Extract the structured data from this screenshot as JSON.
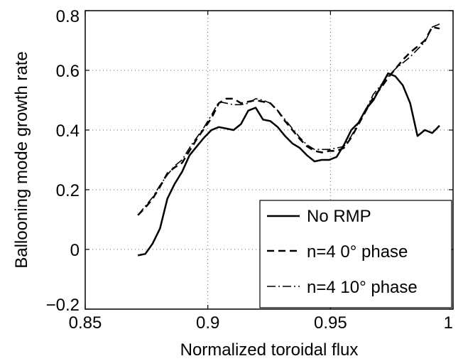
{
  "chart_data": {
    "type": "line",
    "title": "",
    "xlabel": "Normalized toroidal flux",
    "ylabel": "Ballooning mode growth rate",
    "xlim": [
      0.85,
      1.0
    ],
    "ylim": [
      -0.2,
      0.8
    ],
    "xticks": [
      0.85,
      0.9,
      0.95,
      1.0
    ],
    "xtick_labels": [
      "0.85",
      "0.9",
      "0.95",
      "1"
    ],
    "yticks": [
      -0.2,
      0.0,
      0.2,
      0.4,
      0.6,
      0.8
    ],
    "ytick_labels": [
      "−0.2",
      "0",
      "0.2",
      "0.4",
      "0.6",
      "0.8"
    ],
    "grid": true,
    "legend_position": "bottom-right",
    "series": [
      {
        "name": "No RMP",
        "line_style": "solid",
        "color": "#000000",
        "x": [
          0.8715,
          0.8745,
          0.8775,
          0.8805,
          0.8835,
          0.8865,
          0.8895,
          0.8925,
          0.8955,
          0.8985,
          0.9015,
          0.9045,
          0.9075,
          0.9105,
          0.9135,
          0.9165,
          0.9195,
          0.9225,
          0.9255,
          0.9285,
          0.9315,
          0.9345,
          0.9375,
          0.9405,
          0.9435,
          0.9465,
          0.9495,
          0.9525,
          0.9555,
          0.9585,
          0.9615,
          0.9645,
          0.9675,
          0.9705,
          0.9735,
          0.9765,
          0.9795,
          0.9825,
          0.9855,
          0.9885,
          0.9915,
          0.9945
        ],
        "y": [
          -0.02,
          -0.015,
          0.02,
          0.07,
          0.17,
          0.22,
          0.26,
          0.315,
          0.345,
          0.375,
          0.4,
          0.41,
          0.405,
          0.4,
          0.42,
          0.465,
          0.475,
          0.435,
          0.43,
          0.41,
          0.38,
          0.355,
          0.34,
          0.315,
          0.295,
          0.3,
          0.3,
          0.31,
          0.35,
          0.4,
          0.425,
          0.47,
          0.5,
          0.545,
          0.59,
          0.58,
          0.55,
          0.49,
          0.38,
          0.4,
          0.39,
          0.415
        ]
      },
      {
        "name": "n=4 0° phase",
        "line_style": "dashed",
        "color": "#000000",
        "x": [
          0.8715,
          0.8745,
          0.8775,
          0.8805,
          0.8835,
          0.8865,
          0.8895,
          0.8925,
          0.8955,
          0.8985,
          0.9015,
          0.9045,
          0.9075,
          0.9105,
          0.9135,
          0.9165,
          0.9195,
          0.9225,
          0.9255,
          0.9285,
          0.9315,
          0.9345,
          0.9375,
          0.9405,
          0.9435,
          0.9465,
          0.9495,
          0.9525,
          0.9555,
          0.9585,
          0.9615,
          0.9645,
          0.9675,
          0.9705,
          0.9735,
          0.9765,
          0.9795,
          0.9825,
          0.9855,
          0.9885,
          0.9915,
          0.9945
        ],
        "y": [
          0.115,
          0.14,
          0.17,
          0.21,
          0.255,
          0.275,
          0.29,
          0.33,
          0.37,
          0.405,
          0.44,
          0.49,
          0.505,
          0.505,
          0.49,
          0.495,
          0.5,
          0.495,
          0.49,
          0.465,
          0.43,
          0.4,
          0.37,
          0.345,
          0.33,
          0.325,
          0.33,
          0.33,
          0.34,
          0.375,
          0.42,
          0.465,
          0.51,
          0.54,
          0.575,
          0.605,
          0.635,
          0.66,
          0.68,
          0.7,
          0.745,
          0.74
        ]
      },
      {
        "name": "n=4 10° phase",
        "line_style": "dashdot",
        "color": "#000000",
        "x": [
          0.8715,
          0.8745,
          0.8775,
          0.8805,
          0.8835,
          0.8865,
          0.8895,
          0.8925,
          0.8955,
          0.8985,
          0.9015,
          0.9045,
          0.9075,
          0.9105,
          0.9135,
          0.9165,
          0.9195,
          0.9225,
          0.9255,
          0.9285,
          0.9315,
          0.9345,
          0.9375,
          0.9405,
          0.9435,
          0.9465,
          0.9495,
          0.9525,
          0.9555,
          0.9585,
          0.9615,
          0.9645,
          0.9675,
          0.9705,
          0.9735,
          0.9765,
          0.9795,
          0.9825,
          0.9855,
          0.9885,
          0.9915,
          0.9945
        ],
        "y": [
          0.115,
          0.145,
          0.175,
          0.215,
          0.25,
          0.28,
          0.3,
          0.34,
          0.375,
          0.41,
          0.45,
          0.495,
          0.49,
          0.485,
          0.485,
          0.49,
          0.505,
          0.5,
          0.49,
          0.465,
          0.435,
          0.405,
          0.375,
          0.35,
          0.335,
          0.335,
          0.335,
          0.34,
          0.345,
          0.38,
          0.425,
          0.47,
          0.52,
          0.55,
          0.58,
          0.605,
          0.625,
          0.645,
          0.67,
          0.695,
          0.745,
          0.755
        ]
      }
    ]
  }
}
